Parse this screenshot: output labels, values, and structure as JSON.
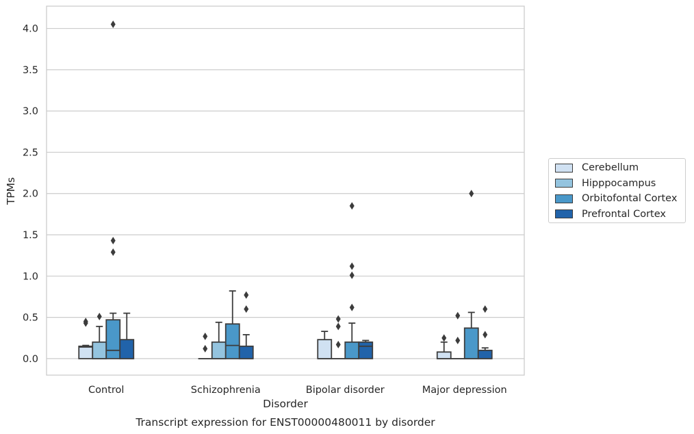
{
  "chart_data": {
    "type": "box",
    "title": "",
    "caption": "Transcript expression for ENST00000480011 by disorder",
    "xlabel": "Disorder",
    "ylabel": "TPMs",
    "ylim": [
      -0.2,
      4.27
    ],
    "yticks": [
      "0.0",
      "0.5",
      "1.0",
      "1.5",
      "2.0",
      "2.5",
      "3.0",
      "3.5",
      "4.0"
    ],
    "ytick_values": [
      0,
      0.5,
      1.0,
      1.5,
      2.0,
      2.5,
      3.0,
      3.5,
      4.0
    ],
    "grid": "horizontal",
    "legend_position": "right",
    "categories": [
      "Control",
      "Schizophrenia",
      "Bipolar disorder",
      "Major depression"
    ],
    "series": [
      {
        "name": "Cerebellum",
        "color": "#d0e1f2",
        "boxes": [
          {
            "q1": 0,
            "median": 0.14,
            "q3": 0.15,
            "whisker_low": 0,
            "whisker_high": 0.16,
            "outliers": [
              0.43,
              0.45
            ]
          },
          {
            "q1": 0,
            "median": 0,
            "q3": 0,
            "whisker_low": 0,
            "whisker_high": 0,
            "outliers": [
              0.12,
              0.27
            ]
          },
          {
            "q1": 0,
            "median": 0,
            "q3": 0.23,
            "whisker_low": 0,
            "whisker_high": 0.33,
            "outliers": []
          },
          {
            "q1": 0,
            "median": 0,
            "q3": 0.08,
            "whisker_low": 0,
            "whisker_high": 0.2,
            "outliers": [
              0.25
            ]
          }
        ]
      },
      {
        "name": "Hipppocampus",
        "color": "#94c4df",
        "boxes": [
          {
            "q1": 0,
            "median": 0,
            "q3": 0.2,
            "whisker_low": 0,
            "whisker_high": 0.39,
            "outliers": [
              0.51
            ]
          },
          {
            "q1": 0,
            "median": 0,
            "q3": 0.2,
            "whisker_low": 0,
            "whisker_high": 0.44,
            "outliers": []
          },
          {
            "q1": 0,
            "median": 0,
            "q3": 0,
            "whisker_low": 0,
            "whisker_high": 0,
            "outliers": [
              0.17,
              0.39,
              0.48
            ]
          },
          {
            "q1": 0,
            "median": 0,
            "q3": 0,
            "whisker_low": 0,
            "whisker_high": 0,
            "outliers": [
              0.22,
              0.52
            ]
          }
        ]
      },
      {
        "name": "Orbitofontal Cortex",
        "color": "#4a98c9",
        "boxes": [
          {
            "q1": 0,
            "median": 0.1,
            "q3": 0.47,
            "whisker_low": 0,
            "whisker_high": 0.55,
            "outliers": [
              1.29,
              1.43,
              4.05
            ]
          },
          {
            "q1": 0,
            "median": 0.16,
            "q3": 0.42,
            "whisker_low": 0,
            "whisker_high": 0.82,
            "outliers": []
          },
          {
            "q1": 0,
            "median": 0,
            "q3": 0.2,
            "whisker_low": 0,
            "whisker_high": 0.43,
            "outliers": [
              0.62,
              1.01,
              1.12,
              1.85
            ]
          },
          {
            "q1": 0,
            "median": 0,
            "q3": 0.37,
            "whisker_low": 0,
            "whisker_high": 0.56,
            "outliers": [
              2.0
            ]
          }
        ]
      },
      {
        "name": "Prefrontal Cortex",
        "color": "#2163aa",
        "boxes": [
          {
            "q1": 0,
            "median": 0,
            "q3": 0.23,
            "whisker_low": 0,
            "whisker_high": 0.55,
            "outliers": []
          },
          {
            "q1": 0,
            "median": 0,
            "q3": 0.15,
            "whisker_low": 0,
            "whisker_high": 0.29,
            "outliers": [
              0.6,
              0.77
            ]
          },
          {
            "q1": 0,
            "median": 0.15,
            "q3": 0.2,
            "whisker_low": 0,
            "whisker_high": 0.22,
            "outliers": []
          },
          {
            "q1": 0,
            "median": 0,
            "q3": 0.1,
            "whisker_low": 0,
            "whisker_high": 0.13,
            "outliers": [
              0.29,
              0.6
            ]
          }
        ]
      }
    ]
  }
}
